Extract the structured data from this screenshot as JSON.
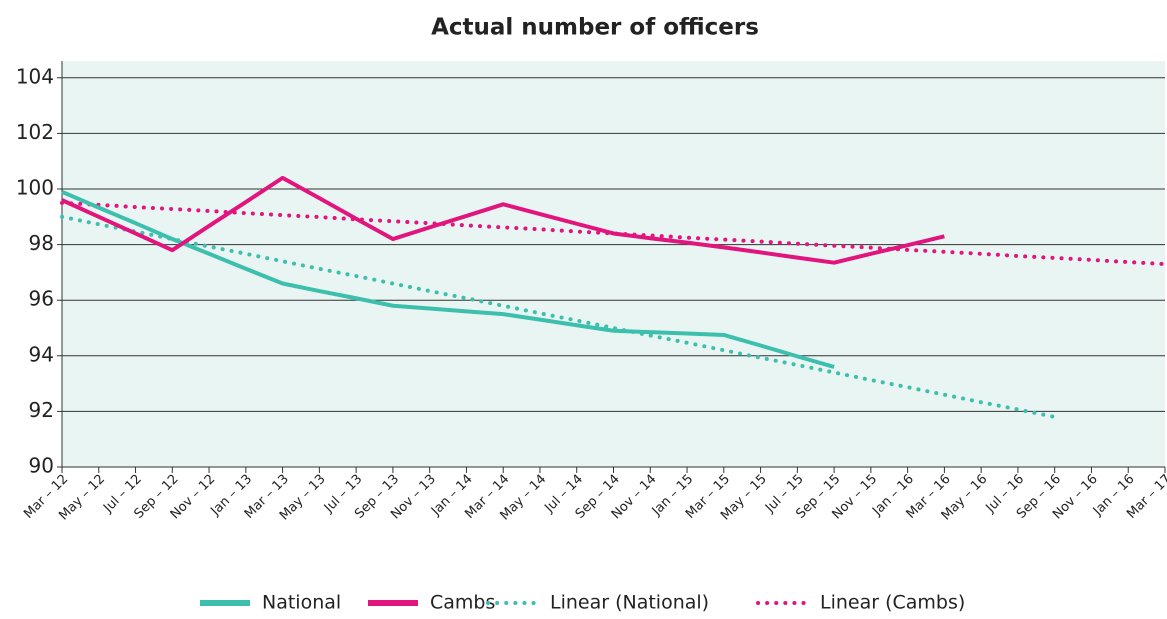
{
  "chart_data": {
    "type": "line",
    "title": "Actual number of officers",
    "categories": [
      "Mar – 12",
      "May – 12",
      "Jul – 12",
      "Sep – 12",
      "Nov – 12",
      "Jan – 13",
      "Mar – 13",
      "May – 13",
      "Jul – 13",
      "Sep – 13",
      "Nov – 13",
      "Jan – 14",
      "Mar – 14",
      "May – 14",
      "Jul – 14",
      "Sep – 14",
      "Nov – 14",
      "Jan – 15",
      "Mar – 15",
      "May – 15",
      "Jul – 15",
      "Sep – 15",
      "Nov – 15",
      "Jan – 16",
      "Mar – 16",
      "May – 16",
      "Jul – 16",
      "Sep – 16",
      "Nov – 16",
      "Jan – 16",
      "Mar – 17"
    ],
    "series": [
      {
        "name": "National",
        "color": "#3dbfae",
        "style": "solid",
        "values": [
          99.9,
          99.33,
          98.77,
          98.2,
          97.67,
          97.13,
          96.6,
          96.33,
          96.07,
          95.8,
          95.7,
          95.6,
          95.5,
          95.3,
          95.1,
          94.9,
          94.85,
          94.8,
          94.75,
          94.37,
          93.98,
          93.6,
          null,
          null,
          null,
          null,
          null,
          null,
          null,
          null,
          null
        ]
      },
      {
        "name": "Cambs",
        "color": "#e2157f",
        "style": "solid",
        "values": [
          99.6,
          99.0,
          98.4,
          97.8,
          98.67,
          99.53,
          100.4,
          99.67,
          98.93,
          98.2,
          98.62,
          99.03,
          99.45,
          99.1,
          98.75,
          98.4,
          98.23,
          98.07,
          97.9,
          97.72,
          97.53,
          97.35,
          97.67,
          97.98,
          98.3,
          null,
          null,
          null,
          null,
          null,
          null
        ]
      },
      {
        "name": "Linear (National)",
        "color": "#3dbfae",
        "style": "dotted",
        "values": [
          99.0,
          98.73,
          98.47,
          98.2,
          97.93,
          97.67,
          97.4,
          97.13,
          96.87,
          96.6,
          96.33,
          96.07,
          95.8,
          95.53,
          95.27,
          95.0,
          94.73,
          94.47,
          94.2,
          93.93,
          93.67,
          93.4,
          93.13,
          92.87,
          92.6,
          92.33,
          92.07,
          91.8,
          null,
          null,
          null
        ]
      },
      {
        "name": "Linear (Cambs)",
        "color": "#e2157f",
        "style": "dotted",
        "values": [
          99.5,
          99.43,
          99.35,
          99.28,
          99.21,
          99.13,
          99.06,
          98.99,
          98.91,
          98.84,
          98.77,
          98.69,
          98.62,
          98.55,
          98.47,
          98.4,
          98.33,
          98.25,
          98.18,
          98.11,
          98.03,
          97.96,
          97.89,
          97.81,
          97.74,
          97.67,
          97.59,
          97.52,
          97.45,
          97.37,
          97.3
        ]
      }
    ],
    "ylim": [
      90,
      104.6
    ],
    "yticks": [
      90,
      92,
      94,
      96,
      98,
      100,
      102,
      104
    ],
    "grid": true,
    "plot_background": "#e9f5f2",
    "legend": "bottom"
  }
}
